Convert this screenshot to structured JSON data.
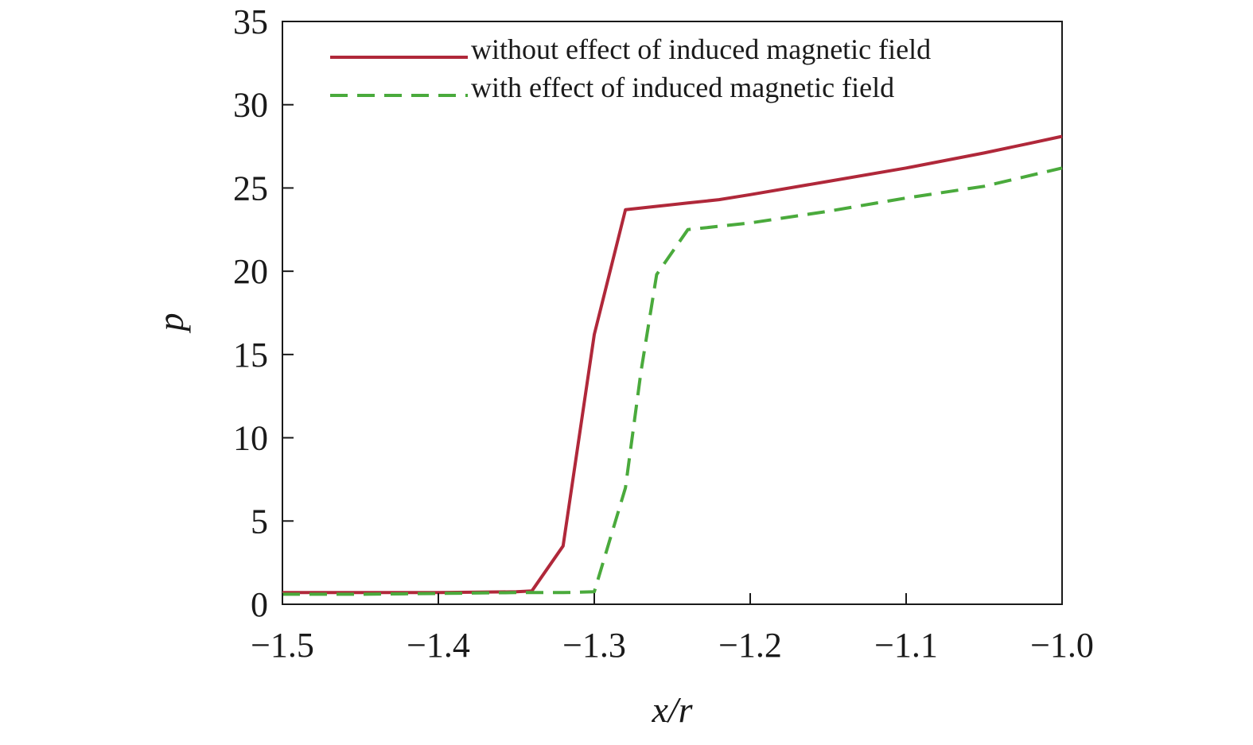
{
  "chart_data": {
    "type": "line",
    "xlabel": "x/r",
    "ylabel": "p",
    "xlim": [
      -1.5,
      -1.0
    ],
    "ylim": [
      0,
      35
    ],
    "xticks": [
      -1.5,
      -1.4,
      -1.3,
      -1.2,
      -1.1,
      -1.0
    ],
    "xtick_labels": [
      "−1.5",
      "−1.4",
      "−1.3",
      "−1.2",
      "−1.1",
      "−1.0"
    ],
    "yticks": [
      0,
      5,
      10,
      15,
      20,
      25,
      30,
      35
    ],
    "ytick_labels": [
      "0",
      "5",
      "10",
      "15",
      "20",
      "25",
      "30",
      "35"
    ],
    "grid": false,
    "legend_position": "top-left",
    "series": [
      {
        "name": "without effect of induced magnetic field",
        "color": "#b0283a",
        "style": "solid",
        "x": [
          -1.5,
          -1.45,
          -1.4,
          -1.35,
          -1.34,
          -1.32,
          -1.3,
          -1.28,
          -1.26,
          -1.24,
          -1.22,
          -1.2,
          -1.15,
          -1.1,
          -1.05,
          -1.02,
          -1.0
        ],
        "y": [
          0.7,
          0.7,
          0.7,
          0.75,
          0.8,
          3.5,
          16.2,
          23.7,
          23.9,
          24.1,
          24.3,
          24.6,
          25.4,
          26.2,
          27.1,
          27.7,
          28.1
        ]
      },
      {
        "name": "with effect of induced magnetic field",
        "color": "#4aaa3c",
        "style": "dashed",
        "x": [
          -1.5,
          -1.45,
          -1.4,
          -1.35,
          -1.32,
          -1.3,
          -1.28,
          -1.27,
          -1.26,
          -1.24,
          -1.22,
          -1.2,
          -1.15,
          -1.1,
          -1.05,
          -1.0
        ],
        "y": [
          0.6,
          0.6,
          0.65,
          0.7,
          0.7,
          0.75,
          7.0,
          14.0,
          19.8,
          22.5,
          22.7,
          22.9,
          23.6,
          24.4,
          25.1,
          26.2
        ]
      }
    ]
  }
}
